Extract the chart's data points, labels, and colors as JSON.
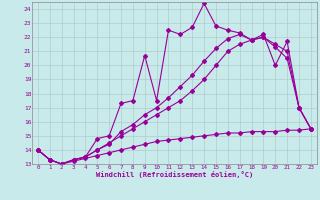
{
  "xlabel": "Windchill (Refroidissement éolien,°C)",
  "background_color": "#c8eaea",
  "grid_color": "#b0cccc",
  "line_color": "#990099",
  "xlim": [
    -0.5,
    23.5
  ],
  "ylim": [
    13,
    24.5
  ],
  "xticks": [
    0,
    1,
    2,
    3,
    4,
    5,
    6,
    7,
    8,
    9,
    10,
    11,
    12,
    13,
    14,
    15,
    16,
    17,
    18,
    19,
    20,
    21,
    22,
    23
  ],
  "yticks": [
    13,
    14,
    15,
    16,
    17,
    18,
    19,
    20,
    21,
    22,
    23,
    24
  ],
  "series1": [
    14.0,
    13.3,
    13.0,
    13.3,
    13.5,
    14.8,
    15.0,
    17.3,
    17.5,
    20.7,
    17.5,
    22.5,
    22.2,
    22.7,
    24.4,
    22.8,
    22.5,
    22.3,
    21.8,
    22.2,
    20.0,
    21.7,
    17.0,
    15.5
  ],
  "series2": [
    14.0,
    13.3,
    13.0,
    13.3,
    13.5,
    14.0,
    14.5,
    15.0,
    15.5,
    16.0,
    16.5,
    17.0,
    17.5,
    18.2,
    19.0,
    20.0,
    21.0,
    21.5,
    21.8,
    22.0,
    21.5,
    21.0,
    17.0,
    15.5
  ],
  "series3": [
    14.0,
    13.3,
    13.0,
    13.3,
    13.5,
    14.0,
    14.4,
    15.3,
    15.8,
    16.5,
    17.0,
    17.7,
    18.5,
    19.3,
    20.3,
    21.2,
    21.9,
    22.2,
    21.8,
    22.0,
    21.3,
    20.5,
    17.0,
    15.5
  ],
  "series4": [
    14.0,
    13.3,
    13.0,
    13.2,
    13.4,
    13.6,
    13.8,
    14.0,
    14.2,
    14.4,
    14.6,
    14.7,
    14.8,
    14.9,
    15.0,
    15.1,
    15.2,
    15.2,
    15.3,
    15.3,
    15.3,
    15.4,
    15.4,
    15.5
  ]
}
